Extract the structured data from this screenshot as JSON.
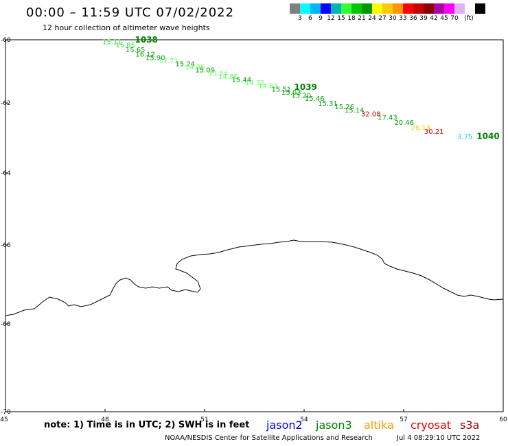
{
  "header": {
    "title": "00:00 – 11:59 UTC 07/02/2022",
    "subtitle": "12 hour collection of altimeter wave heights"
  },
  "scale": {
    "colors": [
      "#808080",
      "#00ffff",
      "#00b4ff",
      "#0000ff",
      "#00b4b4",
      "#33ff33",
      "#00c800",
      "#009600",
      "#ffff00",
      "#ffc800",
      "#ff9600",
      "#ff0000",
      "#c80000",
      "#8b0000",
      "#aa00aa",
      "#ff00ff",
      "#e0b0ff",
      "#ffffff",
      "#000000"
    ],
    "labels": [
      "3",
      "6",
      "9",
      "12",
      "15",
      "18",
      "21",
      "24",
      "27",
      "30",
      "33",
      "36",
      "39",
      "42",
      "45",
      "70",
      "(ft)"
    ]
  },
  "map": {
    "lon_ticks": [
      "45",
      "48",
      "51",
      "54",
      "57",
      "60"
    ],
    "lat_ticks": [
      "-60",
      "-62",
      "-64",
      "-66",
      "-68",
      "-70"
    ],
    "coastline_name": "Antarctic coastline"
  },
  "observations": [
    {
      "lon": 48.0,
      "lat": -60.05,
      "value": "15.11",
      "color": "#33dd33"
    },
    {
      "lon": 48.4,
      "lat": -60.15,
      "value": "15.85",
      "color": "#33dd33"
    },
    {
      "lon": 48.7,
      "lat": -60.3,
      "value": "15.65",
      "color": "#00a000"
    },
    {
      "lon": 49.0,
      "lat": -60.45,
      "value": "16.12",
      "color": "#00a000"
    },
    {
      "lon": 49.3,
      "lat": -60.55,
      "value": "15.90",
      "color": "#00a000"
    },
    {
      "lon": 49.7,
      "lat": -60.65,
      "value": "17.71",
      "color": "#66ff66"
    },
    {
      "lon": 50.2,
      "lat": -60.75,
      "value": "15.24",
      "color": "#00a000"
    },
    {
      "lon": 50.5,
      "lat": -60.85,
      "value": "14.35",
      "color": "#66ff66"
    },
    {
      "lon": 50.8,
      "lat": -60.95,
      "value": "15.09",
      "color": "#00a000"
    },
    {
      "lon": 51.2,
      "lat": -61.05,
      "value": "15.54",
      "color": "#66ff66"
    },
    {
      "lon": 51.5,
      "lat": -61.15,
      "value": "14.86",
      "color": "#66ff66"
    },
    {
      "lon": 51.9,
      "lat": -61.25,
      "value": "15.44",
      "color": "#00a000"
    },
    {
      "lon": 52.3,
      "lat": -61.35,
      "value": "14.32",
      "color": "#66ff66"
    },
    {
      "lon": 52.7,
      "lat": -61.45,
      "value": "14.83",
      "color": "#66ff66"
    },
    {
      "lon": 53.1,
      "lat": -61.55,
      "value": "15.51",
      "color": "#00a000"
    },
    {
      "lon": 53.4,
      "lat": -61.65,
      "value": "15.03",
      "color": "#00a000"
    },
    {
      "lon": 53.7,
      "lat": -61.75,
      "value": "15.20",
      "color": "#00a000"
    },
    {
      "lon": 54.1,
      "lat": -61.85,
      "value": "15.46",
      "color": "#00a000"
    },
    {
      "lon": 54.5,
      "lat": -62.0,
      "value": "15.31",
      "color": "#00a000"
    },
    {
      "lon": 55.0,
      "lat": -62.1,
      "value": "15.26",
      "color": "#00a000"
    },
    {
      "lon": 55.3,
      "lat": -62.2,
      "value": "15.14",
      "color": "#00a000"
    },
    {
      "lon": 55.8,
      "lat": -62.3,
      "value": "32.08",
      "color": "#d40000"
    },
    {
      "lon": 56.3,
      "lat": -62.4,
      "value": "17.43",
      "color": "#00a000"
    },
    {
      "lon": 56.8,
      "lat": -62.55,
      "value": "20.46",
      "color": "#00a000"
    },
    {
      "lon": 57.3,
      "lat": -62.7,
      "value": "26.13",
      "color": "#ffc800"
    },
    {
      "lon": 57.7,
      "lat": -62.8,
      "value": "30.21",
      "color": "#d40000"
    },
    {
      "lon": 58.7,
      "lat": -62.95,
      "value": "3.75",
      "color": "#00c8ff"
    }
  ],
  "time_markers": [
    {
      "lon": 48.9,
      "lat": -60.0,
      "label": "1038",
      "color": "#008000"
    },
    {
      "lon": 53.7,
      "lat": -61.5,
      "label": "1039",
      "color": "#008000"
    },
    {
      "lon": 59.2,
      "lat": -62.95,
      "label": "1040",
      "color": "#008000"
    }
  ],
  "footer": {
    "note": "note: 1) Time is in UTC; 2) SWH is in feet",
    "satellites": [
      {
        "name": "jason2",
        "color": "#0000ff"
      },
      {
        "name": "jason3",
        "color": "#008000"
      },
      {
        "name": "altika",
        "color": "#ff9900"
      },
      {
        "name": "cryosat",
        "color": "#e00000"
      },
      {
        "name": "s3a",
        "color": "#990000"
      }
    ],
    "org": "NOAA/NESDIS Center for Satellite Applications and Research",
    "date": "Jul  4 08:29:10 UTC 2022"
  }
}
